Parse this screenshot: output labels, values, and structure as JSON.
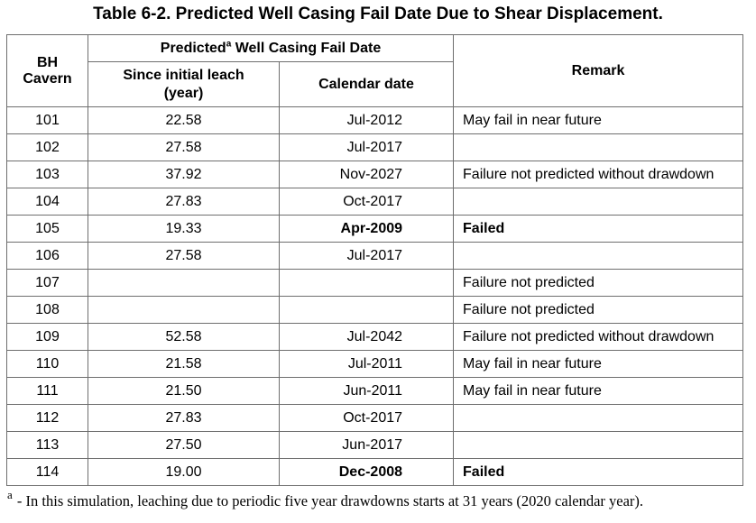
{
  "title": "Table 6-2.  Predicted Well Casing Fail Date Due to Shear Displacement.",
  "headers": {
    "bh_cavern_line1": "BH",
    "bh_cavern_line2": "Cavern",
    "group_prefix": "Predicted",
    "group_superscript": "a",
    "group_suffix": " Well Casing Fail Date",
    "since_initial_leach_line1": "Since initial leach",
    "since_initial_leach_line2": "(year)",
    "calendar_date": "Calendar date",
    "remark": "Remark"
  },
  "rows": [
    {
      "bh": "101",
      "since": "22.58",
      "date": "Jul-2012",
      "remark": "May fail in near future",
      "bold": false
    },
    {
      "bh": "102",
      "since": "27.58",
      "date": "Jul-2017",
      "remark": "",
      "bold": false
    },
    {
      "bh": "103",
      "since": "37.92",
      "date": "Nov-2027",
      "remark": "Failure not predicted without drawdown",
      "bold": false
    },
    {
      "bh": "104",
      "since": "27.83",
      "date": "Oct-2017",
      "remark": "",
      "bold": false
    },
    {
      "bh": "105",
      "since": "19.33",
      "date": "Apr-2009",
      "remark": "Failed",
      "bold": true
    },
    {
      "bh": "106",
      "since": "27.58",
      "date": "Jul-2017",
      "remark": "",
      "bold": false
    },
    {
      "bh": "107",
      "since": "",
      "date": "",
      "remark": "Failure not predicted",
      "bold": false
    },
    {
      "bh": "108",
      "since": "",
      "date": "",
      "remark": "Failure not predicted",
      "bold": false
    },
    {
      "bh": "109",
      "since": "52.58",
      "date": "Jul-2042",
      "remark": "Failure not predicted without drawdown",
      "bold": false
    },
    {
      "bh": "110",
      "since": "21.58",
      "date": "Jul-2011",
      "remark": "May fail in near future",
      "bold": false
    },
    {
      "bh": "111",
      "since": "21.50",
      "date": "Jun-2011",
      "remark": "May fail in near future",
      "bold": false
    },
    {
      "bh": "112",
      "since": "27.83",
      "date": "Oct-2017",
      "remark": "",
      "bold": false
    },
    {
      "bh": "113",
      "since": "27.50",
      "date": "Jun-2017",
      "remark": "",
      "bold": false
    },
    {
      "bh": "114",
      "since": "19.00",
      "date": "Dec-2008",
      "remark": "Failed",
      "bold": true
    }
  ],
  "footnote": {
    "mark": "a",
    "text": " - In this simulation, leaching due to periodic five year drawdowns starts at 31 years (2020 calendar year)."
  }
}
